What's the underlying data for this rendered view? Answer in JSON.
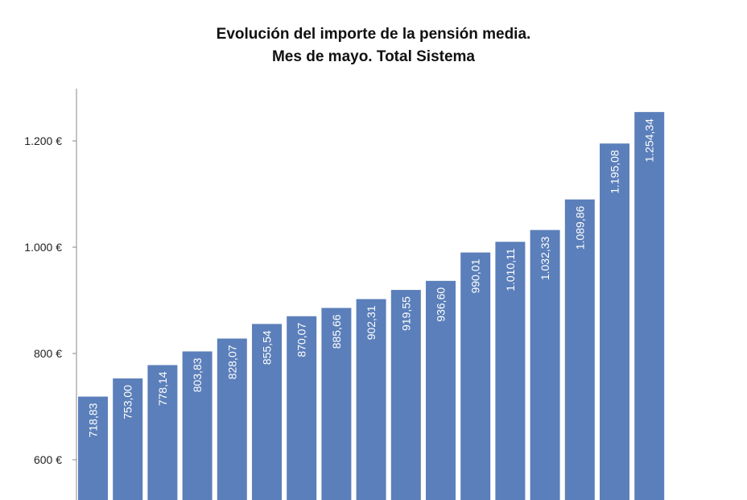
{
  "chart_data": {
    "type": "bar",
    "title": "Evolución del importe de la pensión media.",
    "subtitle": "Mes de mayo. Total Sistema",
    "values": [
      718.83,
      753.0,
      778.14,
      803.83,
      828.07,
      855.54,
      870.07,
      885.66,
      902.31,
      919.55,
      936.6,
      990.01,
      1010.11,
      1032.33,
      1089.86,
      1195.08,
      1254.34
    ],
    "data_labels": [
      "718,83",
      "753,00",
      "778,14",
      "803,83",
      "828,07",
      "855,54",
      "870,07",
      "885,66",
      "902,31",
      "919,55",
      "936,60",
      "990,01",
      "1.010,11",
      "1.032,33",
      "1.089,86",
      "1.195,08",
      "1.254,34"
    ],
    "y_ticks": [
      600,
      800,
      1000,
      1200
    ],
    "y_tick_labels": [
      "600 €",
      "800 €",
      "1.000 €",
      "1.200 €"
    ],
    "ylim": [
      524,
      1300
    ],
    "grid": false,
    "bar_color": "#5b7fba",
    "label_color": "#ffffff"
  }
}
